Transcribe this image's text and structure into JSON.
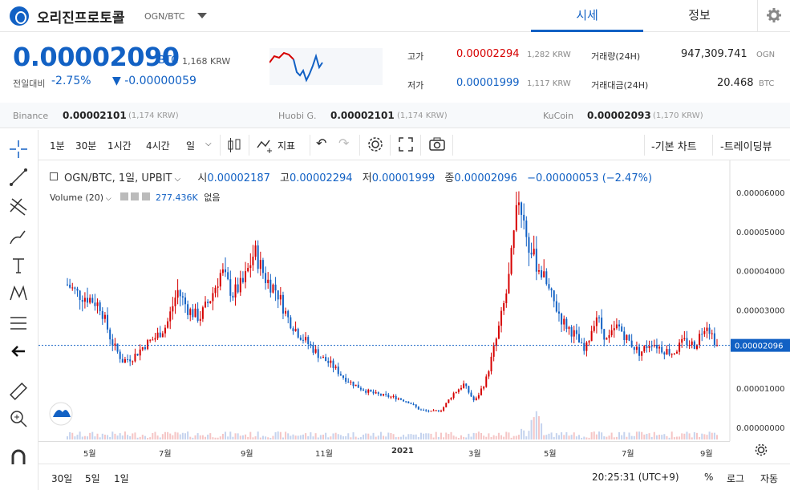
{
  "header": {
    "coin_name": "오리진프로토콜",
    "coin_pair": "OGN/BTC",
    "tab_market": "시세",
    "tab_info": "정보"
  },
  "price": {
    "value": "0.00002090",
    "unit": "BTC",
    "krw": "1,168 KRW",
    "change_label": "전일대비",
    "change_rate": "-2.75%",
    "change_amount": "▼ -0.00000059",
    "accent": "#1261c4",
    "down_color": "#1261c4",
    "up_color": "#d60000"
  },
  "stats": {
    "high_label": "고가",
    "high_value": "0.00002294",
    "high_krw": "1,282 KRW",
    "low_label": "저가",
    "low_value": "0.00001999",
    "low_krw": "1,117 KRW",
    "volume_label": "거래량(24H)",
    "volume_value": "947,309.741",
    "volume_unit": "OGN",
    "amount_label": "거래대금(24H)",
    "amount_value": "20.468",
    "amount_unit": "BTC"
  },
  "exchanges": [
    {
      "name": "Binance",
      "value": "0.00002101",
      "krw": "(1,174 KRW)"
    },
    {
      "name": "Huobi G.",
      "value": "0.00002101",
      "krw": "(1,174 KRW)"
    },
    {
      "name": "KuCoin",
      "value": "0.00002093",
      "krw": "(1,170 KRW)"
    }
  ],
  "toolbar": {
    "intervals": [
      "1분",
      "30분",
      "1시간",
      "4시간",
      "일"
    ],
    "indicator_label": "지표",
    "basic_chart": "-기본 차트",
    "trading_view": "-트레이딩뷰"
  },
  "legend": {
    "symbol": "OGN/BTC, 1일, UPBIT",
    "open_label": "시",
    "open": "0.00002187",
    "high_label": "고",
    "high": "0.00002294",
    "low_label": "저",
    "low": "0.00001999",
    "close_label": "종",
    "close": "0.00002096",
    "change": "−0.00000053 (−2.47%)",
    "volume_label": "Volume (20)",
    "volume_value": "277.436K",
    "volume_extra": "없음"
  },
  "chart_data": {
    "type": "candlestick",
    "y_ticks": [
      "0.00006000",
      "0.00005000",
      "0.00004000",
      "0.00003000",
      "0.00001000",
      "0.00000000"
    ],
    "ylim": [
      0,
      6.25e-05
    ],
    "last_price_label": "0.00002096",
    "last_price": 2.096e-05,
    "x_tick_labels": [
      "5월",
      "7월",
      "9월",
      "11월",
      "2021",
      "3월",
      "5월",
      "7월",
      "9월"
    ],
    "close_series": [
      3.65e-05,
      3.4e-05,
      3.3e-05,
      3.1e-05,
      2.2e-05,
      1.7e-05,
      1.8e-05,
      2.1e-05,
      2.3e-05,
      2.6e-05,
      3.5e-05,
      3e-05,
      2.8e-05,
      3.3e-05,
      4e-05,
      3.4e-05,
      3.7e-05,
      4.5e-05,
      3.8e-05,
      3.5e-05,
      2.8e-05,
      2.4e-05,
      2.1e-05,
      1.8e-05,
      1.6e-05,
      1.3e-05,
      1.1e-05,
      9.5e-06,
      8.5e-06,
      8e-06,
      7.5e-06,
      6.5e-06,
      4.5e-06,
      4e-06,
      4.5e-06,
      8.5e-06,
      1.1e-05,
      6.5e-06,
      1.2e-05,
      2.3e-05,
      3.6e-05,
      5.9e-05,
      4.5e-05,
      4e-05,
      3.3e-05,
      2.7e-05,
      2.4e-05,
      1.9e-05,
      2.9e-05,
      2.2e-05,
      2.6e-05,
      2.2e-05,
      1.9e-05,
      2.2e-05,
      2e-05,
      1.9e-05,
      2.2e-05,
      2.1e-05,
      2.7e-05,
      2.096e-05
    ]
  },
  "bottom": {
    "ranges": [
      "30일",
      "5일",
      "1일"
    ],
    "time": "20:25:31 (UTC+9)",
    "pct": "%",
    "log": "로그",
    "auto": "자동"
  }
}
